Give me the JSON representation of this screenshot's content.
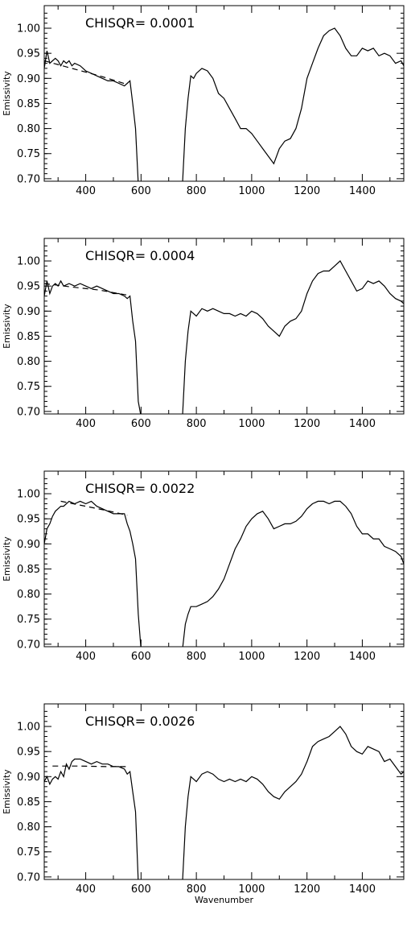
{
  "chart_data": [
    {
      "type": "line",
      "annotation": "CHISQR=  0.0001",
      "ylabel": "Emissivity",
      "xlabel": "",
      "xlim": [
        250,
        1550
      ],
      "ylim": [
        0.695,
        1.045
      ],
      "xticks": [
        400,
        600,
        800,
        1000,
        1200,
        1400
      ],
      "yticks": [
        "0.70",
        "0.75",
        "0.80",
        "0.85",
        "0.90",
        "0.95",
        "1.00"
      ],
      "series": [
        {
          "style": "solid",
          "x": [
            250,
            260,
            270,
            280,
            290,
            300,
            310,
            320,
            330,
            340,
            350,
            360,
            380,
            400,
            420,
            440,
            460,
            480,
            500,
            520,
            540,
            550,
            560,
            570,
            580,
            590,
            600,
            null,
            750,
            760,
            770,
            780,
            790,
            800,
            820,
            840,
            860,
            880,
            900,
            920,
            940,
            960,
            980,
            1000,
            1020,
            1040,
            1060,
            1080,
            1100,
            1120,
            1140,
            1160,
            1180,
            1200,
            1220,
            1240,
            1260,
            1280,
            1300,
            1320,
            1340,
            1360,
            1380,
            1400,
            1420,
            1440,
            1460,
            1480,
            1500,
            1520,
            1540,
            1550
          ],
          "y": [
            0.92,
            0.955,
            0.93,
            0.935,
            0.94,
            0.935,
            0.925,
            0.935,
            0.93,
            0.935,
            0.925,
            0.93,
            0.925,
            0.915,
            0.91,
            0.905,
            0.9,
            0.895,
            0.895,
            0.89,
            0.885,
            0.89,
            0.895,
            0.85,
            0.8,
            0.69,
            0.69,
            null,
            0.69,
            0.8,
            0.86,
            0.905,
            0.9,
            0.91,
            0.92,
            0.915,
            0.9,
            0.87,
            0.86,
            0.84,
            0.82,
            0.8,
            0.8,
            0.79,
            0.775,
            0.76,
            0.745,
            0.73,
            0.76,
            0.775,
            0.78,
            0.8,
            0.84,
            0.9,
            0.93,
            0.96,
            0.985,
            0.995,
            1.0,
            0.985,
            0.96,
            0.945,
            0.945,
            0.96,
            0.955,
            0.96,
            0.945,
            0.95,
            0.945,
            0.93,
            0.935,
            0.925
          ]
        },
        {
          "style": "dashed",
          "x": [
            250,
            350,
            450,
            550
          ],
          "y": [
            0.935,
            0.92,
            0.905,
            0.888
          ]
        }
      ]
    },
    {
      "type": "line",
      "annotation": "CHISQR=  0.0004",
      "ylabel": "Emissivity",
      "xlabel": "",
      "xlim": [
        250,
        1550
      ],
      "ylim": [
        0.695,
        1.045
      ],
      "xticks": [
        400,
        600,
        800,
        1000,
        1200,
        1400
      ],
      "yticks": [
        "0.70",
        "0.75",
        "0.80",
        "0.85",
        "0.90",
        "0.95",
        "1.00"
      ],
      "series": [
        {
          "style": "solid",
          "x": [
            250,
            260,
            270,
            280,
            290,
            300,
            310,
            320,
            340,
            360,
            380,
            400,
            420,
            440,
            460,
            480,
            500,
            520,
            540,
            550,
            560,
            570,
            580,
            590,
            600,
            null,
            750,
            760,
            770,
            780,
            800,
            820,
            840,
            860,
            880,
            900,
            920,
            940,
            960,
            980,
            1000,
            1020,
            1040,
            1060,
            1080,
            1100,
            1120,
            1140,
            1160,
            1180,
            1200,
            1220,
            1240,
            1260,
            1280,
            1300,
            1320,
            1340,
            1360,
            1380,
            1400,
            1420,
            1440,
            1460,
            1480,
            1500,
            1520,
            1540,
            1550
          ],
          "y": [
            0.93,
            0.96,
            0.935,
            0.95,
            0.955,
            0.95,
            0.96,
            0.95,
            0.955,
            0.95,
            0.955,
            0.95,
            0.945,
            0.95,
            0.945,
            0.94,
            0.935,
            0.935,
            0.93,
            0.925,
            0.93,
            0.88,
            0.84,
            0.72,
            0.69,
            null,
            0.69,
            0.8,
            0.86,
            0.9,
            0.89,
            0.905,
            0.9,
            0.905,
            0.9,
            0.895,
            0.895,
            0.89,
            0.895,
            0.89,
            0.9,
            0.895,
            0.885,
            0.87,
            0.86,
            0.85,
            0.87,
            0.88,
            0.885,
            0.9,
            0.935,
            0.96,
            0.975,
            0.98,
            0.98,
            0.99,
            1.0,
            0.98,
            0.96,
            0.94,
            0.945,
            0.96,
            0.955,
            0.96,
            0.95,
            0.935,
            0.925,
            0.92,
            0.915
          ]
        },
        {
          "style": "dashed",
          "x": [
            250,
            350,
            450,
            550
          ],
          "y": [
            0.955,
            0.948,
            0.942,
            0.932
          ]
        }
      ]
    },
    {
      "type": "line",
      "annotation": "CHISQR=  0.0022",
      "ylabel": "Emissivity",
      "xlabel": "",
      "xlim": [
        250,
        1550
      ],
      "ylim": [
        0.695,
        1.045
      ],
      "xticks": [
        400,
        600,
        800,
        1000,
        1200,
        1400
      ],
      "yticks": [
        "0.70",
        "0.75",
        "0.80",
        "0.85",
        "0.90",
        "0.95",
        "1.00"
      ],
      "series": [
        {
          "style": "solid",
          "x": [
            250,
            260,
            270,
            280,
            290,
            300,
            310,
            320,
            340,
            360,
            380,
            400,
            420,
            440,
            460,
            480,
            500,
            520,
            540,
            550,
            560,
            570,
            580,
            590,
            600,
            null,
            750,
            760,
            770,
            780,
            800,
            820,
            840,
            860,
            880,
            900,
            920,
            940,
            960,
            980,
            1000,
            1020,
            1040,
            1060,
            1080,
            1100,
            1120,
            1140,
            1160,
            1180,
            1200,
            1220,
            1240,
            1260,
            1280,
            1300,
            1320,
            1340,
            1360,
            1380,
            1400,
            1420,
            1440,
            1460,
            1480,
            1500,
            1520,
            1540,
            1550
          ],
          "y": [
            0.9,
            0.93,
            0.94,
            0.955,
            0.965,
            0.97,
            0.975,
            0.975,
            0.985,
            0.98,
            0.985,
            0.98,
            0.985,
            0.975,
            0.97,
            0.965,
            0.96,
            0.96,
            0.96,
            0.94,
            0.925,
            0.9,
            0.87,
            0.76,
            0.69,
            null,
            0.69,
            0.74,
            0.76,
            0.775,
            0.775,
            0.78,
            0.785,
            0.795,
            0.81,
            0.83,
            0.86,
            0.89,
            0.91,
            0.935,
            0.95,
            0.96,
            0.965,
            0.95,
            0.93,
            0.935,
            0.94,
            0.94,
            0.945,
            0.955,
            0.97,
            0.98,
            0.985,
            0.985,
            0.98,
            0.985,
            0.985,
            0.975,
            0.96,
            0.935,
            0.92,
            0.92,
            0.91,
            0.91,
            0.895,
            0.89,
            0.885,
            0.875,
            0.86
          ]
        },
        {
          "style": "dashed",
          "x": [
            310,
            400,
            480,
            550
          ],
          "y": [
            0.985,
            0.975,
            0.966,
            0.957
          ]
        }
      ]
    },
    {
      "type": "line",
      "annotation": "CHISQR=  0.0026",
      "ylabel": "Emissivity",
      "xlabel": "Wavenumber",
      "xlim": [
        250,
        1550
      ],
      "ylim": [
        0.695,
        1.045
      ],
      "xticks": [
        400,
        600,
        800,
        1000,
        1200,
        1400
      ],
      "yticks": [
        "0.70",
        "0.75",
        "0.80",
        "0.85",
        "0.90",
        "0.95",
        "1.00"
      ],
      "series": [
        {
          "style": "solid",
          "x": [
            250,
            260,
            270,
            280,
            290,
            300,
            310,
            320,
            330,
            340,
            350,
            360,
            380,
            400,
            420,
            440,
            460,
            480,
            500,
            520,
            540,
            550,
            560,
            570,
            580,
            590,
            600,
            null,
            750,
            760,
            770,
            780,
            800,
            820,
            840,
            860,
            880,
            900,
            920,
            940,
            960,
            980,
            1000,
            1020,
            1040,
            1060,
            1080,
            1100,
            1120,
            1140,
            1160,
            1180,
            1200,
            1220,
            1240,
            1260,
            1280,
            1300,
            1320,
            1340,
            1360,
            1380,
            1400,
            1420,
            1440,
            1460,
            1480,
            1500,
            1520,
            1540,
            1550
          ],
          "y": [
            0.89,
            0.9,
            0.885,
            0.895,
            0.9,
            0.895,
            0.91,
            0.9,
            0.925,
            0.915,
            0.93,
            0.935,
            0.935,
            0.93,
            0.925,
            0.93,
            0.925,
            0.925,
            0.92,
            0.92,
            0.915,
            0.905,
            0.91,
            0.87,
            0.83,
            0.69,
            0.69,
            null,
            0.69,
            0.8,
            0.86,
            0.9,
            0.89,
            0.905,
            0.91,
            0.905,
            0.895,
            0.89,
            0.895,
            0.89,
            0.895,
            0.89,
            0.9,
            0.895,
            0.885,
            0.87,
            0.86,
            0.855,
            0.87,
            0.88,
            0.89,
            0.905,
            0.93,
            0.96,
            0.97,
            0.975,
            0.98,
            0.99,
            1.0,
            0.985,
            0.96,
            0.95,
            0.945,
            0.96,
            0.955,
            0.95,
            0.93,
            0.935,
            0.92,
            0.905,
            0.91
          ]
        },
        {
          "style": "dashed",
          "x": [
            280,
            380,
            480,
            550
          ],
          "y": [
            0.921,
            0.921,
            0.92,
            0.92
          ]
        }
      ]
    }
  ]
}
